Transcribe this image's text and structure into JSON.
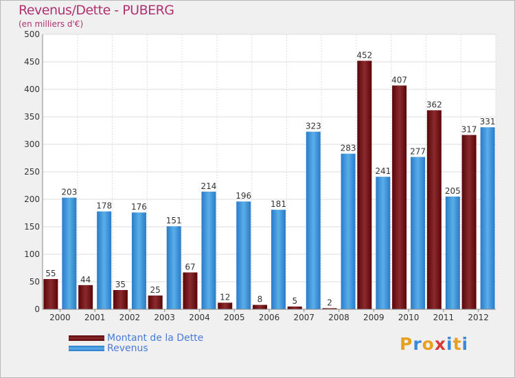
{
  "title": "Revenus/Dette - PUBERG",
  "subtitle": "(en milliers d'€)",
  "logo": [
    "P",
    "r",
    "o",
    "x",
    "i",
    "t",
    "i"
  ],
  "logo_colors": [
    "#e8a020",
    "#3a8ad8",
    "#e8a020",
    "#d83a3a",
    "#3a8ad8",
    "#e8a020",
    "#3a8ad8"
  ],
  "colors": {
    "dette": "#7a0a10",
    "revenus": "#2f8ad8"
  },
  "chart_data": {
    "type": "bar",
    "title": "Revenus/Dette - PUBERG",
    "ylabel": "(en milliers d'€)",
    "xlabel": "",
    "ylim": [
      0,
      500
    ],
    "yticks": [
      0,
      50,
      100,
      150,
      200,
      250,
      300,
      350,
      400,
      450,
      500
    ],
    "categories": [
      "2000",
      "2001",
      "2002",
      "2003",
      "2004",
      "2005",
      "2006",
      "2007",
      "2008",
      "2009",
      "2010",
      "2011",
      "2012"
    ],
    "series": [
      {
        "name": "Montant de la Dette",
        "values": [
          55,
          44,
          35,
          25,
          67,
          12,
          8,
          5,
          2,
          452,
          407,
          362,
          317
        ]
      },
      {
        "name": "Revenus",
        "values": [
          203,
          178,
          176,
          151,
          214,
          196,
          181,
          323,
          283,
          241,
          277,
          205,
          331
        ]
      }
    ],
    "grid": true,
    "legend": "bottom-left"
  }
}
